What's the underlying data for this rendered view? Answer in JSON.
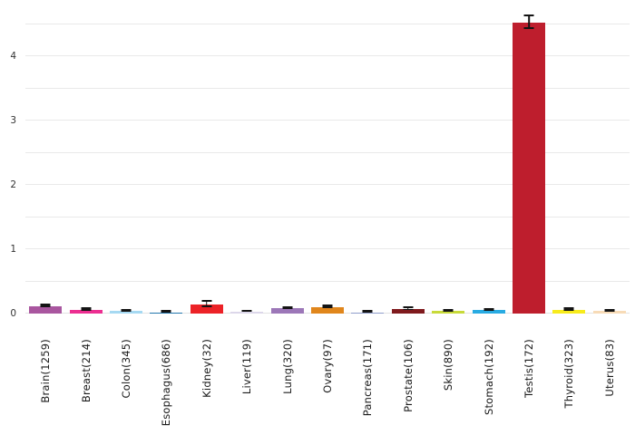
{
  "chart_data": {
    "type": "bar",
    "title": "",
    "subtitle": "",
    "xlabel": "",
    "ylabel": "",
    "legend": "none",
    "grid": true,
    "categories": [
      "Brain(1259)",
      "Breast(214)",
      "Colon(345)",
      "Esophagus(686)",
      "Kidney(32)",
      "Liver(119)",
      "Lung(320)",
      "Ovary(97)",
      "Pancreas(171)",
      "Prostate(106)",
      "Skin(890)",
      "Stomach(192)",
      "Testis(172)",
      "Thyroid(323)",
      "Uterus(83)"
    ],
    "values": [
      0.11,
      0.06,
      0.04,
      0.02,
      0.14,
      0.03,
      0.08,
      0.1,
      0.02,
      0.07,
      0.04,
      0.05,
      4.52,
      0.06,
      0.04
    ],
    "errors": [
      0.015,
      0.012,
      0.008,
      0.005,
      0.045,
      0.006,
      0.012,
      0.018,
      0.006,
      0.02,
      0.008,
      0.008,
      0.1,
      0.015,
      0.012
    ],
    "bar_colors": [
      "#a9569f",
      "#ec2e91",
      "#a6d9f2",
      "#2276ad",
      "#ec2227",
      "#dcd7ea",
      "#9c77b8",
      "#e0861c",
      "#8e9dcb",
      "#7f1a1d",
      "#c8da3a",
      "#29abe2",
      "#be1e2d",
      "#f7eb1c",
      "#f7dbb7"
    ],
    "yticks": [
      0,
      1,
      2,
      3,
      4
    ],
    "gridline_values": [
      0,
      0.5,
      1,
      1.5,
      2,
      2.5,
      3,
      3.5,
      4,
      4.5
    ],
    "ylim": [
      0,
      4.79
    ],
    "colors": {
      "background": "#ffffff",
      "gridline": "#e9e9e9",
      "baseline": "#e2e2e2",
      "error_bar": "#141414",
      "tick_label": "#333333",
      "category_label": "#1a1a1a"
    }
  }
}
